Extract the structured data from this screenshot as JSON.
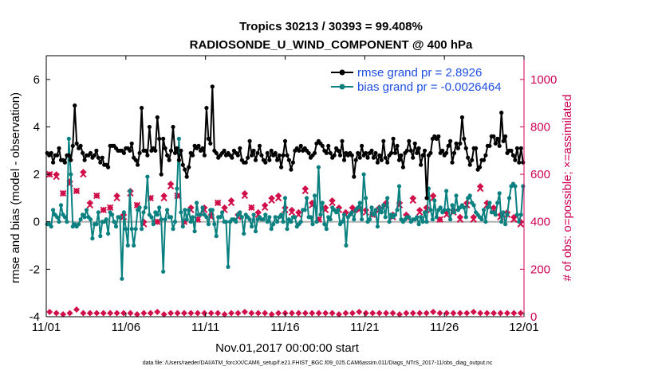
{
  "chart_data": {
    "type": "line",
    "title_line1": "Tropics 30213 / 30393 = 99.408%",
    "title_line2": "RADIOSONDE_U_WIND_COMPONENT @ 400 hPa",
    "xlabel": "Nov.01,2017 00:00:00 start",
    "ylabel_left": "rmse and bias (model - observation)",
    "ylabel_right": "# of obs: o=possible; ×=assimilated",
    "x_ticks": [
      "11/01",
      "11/06",
      "11/11",
      "11/16",
      "11/21",
      "11/26",
      "12/01"
    ],
    "x_tick_days": [
      0,
      5,
      10,
      15,
      20,
      25,
      30
    ],
    "xlim": [
      0,
      30
    ],
    "y_left_ticks": [
      "-4",
      "-2",
      "0",
      "2",
      "4",
      "6"
    ],
    "y_left_tick_values": [
      -4,
      -2,
      0,
      2,
      4,
      6
    ],
    "ylim_left": [
      -4,
      7
    ],
    "y_right_ticks": [
      "0",
      "200",
      "400",
      "600",
      "800",
      "1000"
    ],
    "y_right_tick_values": [
      0,
      200,
      400,
      600,
      800,
      1000
    ],
    "ylim_right": [
      0,
      1100
    ],
    "colors": {
      "rmse": "#000000",
      "bias": "#0a8080",
      "obs": "#d0104a",
      "zero_line": "#b0b0b0",
      "legend_text": "#1f4fe0",
      "right_axis": "#cc0055"
    },
    "series": [
      {
        "name": "rmse",
        "legend": "rmse grand pr = 2.8926",
        "values": [
          2.9,
          2.8,
          2.9,
          2.5,
          2.8,
          2.8,
          3.1,
          2.6,
          2.6,
          2.5,
          2.8,
          2.8,
          2.6,
          3.2,
          4.9,
          3.3,
          3.1,
          3.2,
          2.9,
          2.6,
          2.8,
          2.8,
          2.9,
          2.7,
          2.8,
          3.0,
          2.7,
          2.5,
          2.7,
          2.4,
          2.4,
          2.3,
          3.2,
          3.2,
          3.2,
          3.1,
          3.0,
          3.0,
          3.0,
          2.9,
          3.1,
          3.1,
          3.0,
          3.3,
          2.7,
          2.6,
          2.4,
          2.9,
          4.8,
          3.0,
          3.0,
          2.8,
          4.0,
          3.0,
          3.1,
          3.0,
          4.4,
          3.5,
          2.0,
          3.5,
          3.1,
          2.8,
          2.6,
          3.0,
          4.0,
          2.9,
          3.1,
          2.6,
          3.0,
          2.4,
          2.2,
          1.9,
          2.3,
          2.9,
          2.8,
          3.2,
          3.1,
          3.2,
          3.0,
          3.1,
          2.8,
          4.8,
          3.5,
          3.3,
          5.7,
          3.0,
          2.9,
          2.7,
          2.8,
          2.9,
          3.0,
          2.8,
          2.9,
          2.8,
          2.7,
          3.0,
          2.9,
          2.8,
          3.1,
          2.6,
          2.5,
          2.5,
          2.7,
          3.4,
          2.8,
          3.0,
          2.6,
          2.9,
          3.2,
          2.8,
          2.6,
          2.5,
          2.9,
          2.6,
          3.0,
          2.8,
          2.9,
          2.6,
          2.8,
          2.3,
          2.8,
          3.4,
          2.8,
          2.6,
          2.2,
          2.5,
          3.0,
          3.1,
          3.0,
          3.2,
          3.0,
          3.1,
          3.0,
          2.9,
          2.7,
          2.8,
          2.9,
          3.3,
          3.4,
          3.3,
          3.2,
          3.0,
          2.9,
          3.2,
          2.9,
          2.7,
          2.8,
          3.1,
          3.0,
          2.8,
          3.4,
          2.6,
          2.9,
          2.8,
          2.9,
          2.8,
          1.9,
          2.6,
          2.9,
          2.7,
          3.2,
          2.8,
          2.9,
          2.7,
          2.9,
          3.0,
          2.7,
          2.9,
          2.5,
          2.8,
          2.6,
          3.4,
          2.7,
          2.5,
          2.8,
          2.9,
          3.5,
          2.9,
          3.2,
          2.6,
          2.8,
          2.3,
          2.9,
          3.0,
          3.4,
          3.0,
          2.7,
          3.3,
          2.9,
          3.1,
          2.4,
          2.8,
          3.0,
          1.0,
          2.8,
          2.9,
          3.5,
          3.6,
          3.5,
          3.6,
          2.9,
          3.0,
          2.8,
          2.9,
          3.2,
          3.4,
          2.5,
          2.9,
          3.3,
          3.1,
          3.3,
          4.4,
          3.5,
          3.1,
          2.7,
          2.4,
          2.6,
          3.1,
          3.1,
          2.2,
          2.3,
          2.6,
          2.6,
          2.8,
          3.2,
          3.2,
          3.6,
          3.6,
          3.3,
          3.5,
          3.2,
          4.6,
          3.4,
          3.6,
          2.9,
          3.0,
          3.0,
          2.8,
          2.6,
          3.1,
          2.5,
          3.1,
          2.5
        ]
      },
      {
        "name": "bias",
        "legend": "bias grand pr = -0.0026464",
        "values": [
          -0.1,
          -0.1,
          -0.2,
          0.5,
          0.3,
          0.2,
          0.0,
          0.7,
          0.3,
          0.2,
          0.0,
          3.5,
          2.0,
          -0.2,
          -0.1,
          -0.2,
          -0.1,
          0.1,
          0.3,
          0.2,
          0.5,
          0.2,
          0.1,
          -0.7,
          -0.1,
          -0.1,
          0.4,
          -0.6,
          0.0,
          0.0,
          0.1,
          -0.5,
          0.4,
          0.3,
          0.0,
          -0.2,
          0.2,
          0.2,
          -2.4,
          0.4,
          -0.3,
          -1.0,
          1.3,
          -0.3,
          -1.0,
          -0.3,
          0.5,
          0.6,
          -0.3,
          0.4,
          0.6,
          1.9,
          0.3,
          0.2,
          -0.1,
          0.4,
          0.3,
          0.6,
          0.1,
          -2.1,
          0.1,
          0.5,
          0.2,
          0.2,
          -0.3,
          0.0,
          1.4,
          3.5,
          0.4,
          -0.2,
          0.5,
          0.1,
          0.5,
          0.0,
          0.2,
          -0.4,
          0.8,
          0.3,
          0.3,
          0.6,
          0.3,
          0.2,
          -0.1,
          0.5,
          0.5,
          -0.1,
          -0.6,
          0.2,
          0.2,
          0.4,
          0.0,
          0.0,
          -1.9,
          0.0,
          0.1,
          0.1,
          0.0,
          0.3,
          0.4,
          0.2,
          -0.5,
          0.3,
          0.2,
          0.1,
          -0.2,
          0.3,
          -0.4,
          0.1,
          0.2,
          0.1,
          0.1,
          0.3,
          0.0,
          0.2,
          -0.3,
          -0.1,
          0.2,
          0.0,
          0.2,
          0.3,
          0.0,
          1.0,
          -0.3,
          0.1,
          0.0,
          0.2,
          0.2,
          -0.2,
          -0.1,
          0.0,
          0.5,
          0.5,
          1.0,
          0.2,
          0.2,
          -0.1,
          1.1,
          0.0,
          2.3,
          0.3,
          0.8,
          -0.1,
          -0.3,
          0.2,
          0.1,
          0.6,
          0.5,
          0.4,
          0.5,
          -0.1,
          0.0,
          0.3,
          -1.0,
          0.2,
          0.3,
          0.4,
          0.1,
          0.5,
          0.6,
          0.8,
          0.1,
          2.0,
          1.0,
          0.0,
          0.1,
          0.6,
          0.3,
          0.5,
          -0.2,
          0.6,
          0.4,
          0.7,
          0.2,
          1.0,
          0.0,
          0.3,
          0.2,
          0.3,
          0.5,
          1.5,
          0.1,
          0.0,
          0.1,
          0.2,
          0.2,
          0.0,
          0.1,
          0.1,
          0.2,
          -0.1,
          0.2,
          0.0,
          0.4,
          0.0,
          1.4,
          0.5,
          0.1,
          0.9,
          0.2,
          0.5,
          0.6,
          0.4,
          0.5,
          1.3,
          0.5,
          0.1,
          0.7,
          0.4,
          1.1,
          0.5,
          0.6,
          0.7,
          0.6,
          0.2,
          1.0,
          1.1,
          0.8,
          0.7,
          0.4,
          0.3,
          0.2,
          0.1,
          0.5,
          0.0,
          0.6,
          0.8,
          0.4,
          0.4,
          0.3,
          0.8,
          1.2,
          0.0,
          0.4,
          -0.1,
          0.3,
          1.0,
          1.5,
          1.6,
          1.5,
          0.3,
          0.0,
          0.3,
          1.5
        ]
      },
      {
        "name": "obs_possible",
        "values": [
          600,
          600,
          520,
          570,
          530,
          610,
          480,
          510,
          450,
          460,
          510,
          430,
          530,
          470,
          400,
          500,
          400,
          510,
          560,
          510,
          400,
          460,
          410,
          460,
          430,
          480,
          460,
          490,
          430,
          520,
          460,
          440,
          470,
          500,
          510,
          460,
          450,
          440,
          540,
          480,
          410,
          460,
          490,
          460,
          440,
          460,
          460,
          450,
          430,
          460,
          480,
          430,
          480,
          430,
          500,
          450,
          460,
          510,
          410,
          440,
          450,
          420,
          480,
          420,
          550,
          480,
          460,
          430,
          440,
          420,
          400
        ]
      },
      {
        "name": "obs_assimilated",
        "values": [
          600,
          590,
          520,
          560,
          530,
          600,
          470,
          510,
          450,
          460,
          500,
          420,
          520,
          470,
          390,
          500,
          400,
          500,
          550,
          510,
          400,
          450,
          410,
          450,
          420,
          480,
          450,
          480,
          420,
          510,
          460,
          430,
          460,
          490,
          500,
          450,
          440,
          430,
          530,
          470,
          410,
          450,
          480,
          450,
          430,
          450,
          450,
          440,
          430,
          450,
          470,
          420,
          470,
          420,
          490,
          440,
          450,
          500,
          410,
          430,
          440,
          410,
          470,
          410,
          540,
          470,
          450,
          420,
          430,
          410,
          390
        ]
      },
      {
        "name": "obs_low",
        "values": [
          20,
          15,
          10,
          15,
          30,
          15,
          15,
          15,
          15,
          15,
          15,
          15,
          15,
          10,
          15,
          15,
          20,
          10,
          15,
          15,
          15,
          15,
          15,
          15,
          15,
          15,
          10,
          15,
          15,
          20,
          15,
          15,
          15,
          10,
          15,
          15,
          15,
          15,
          15,
          15,
          15,
          15,
          15,
          10,
          15,
          15,
          20,
          15,
          15,
          15,
          15,
          15,
          10,
          15,
          15,
          15,
          15,
          20,
          15,
          15,
          15,
          15,
          15,
          20,
          15,
          15,
          15,
          15,
          15,
          15,
          15
        ]
      }
    ]
  },
  "footer": "data file: /Users/raeder/DAI/ATM_forcXX/CAM6_setup/f.e21.FHIST_BGC.f09_025.CAM6assim.011/Diags_NTrS_2017-11/obs_diag_output.nc"
}
